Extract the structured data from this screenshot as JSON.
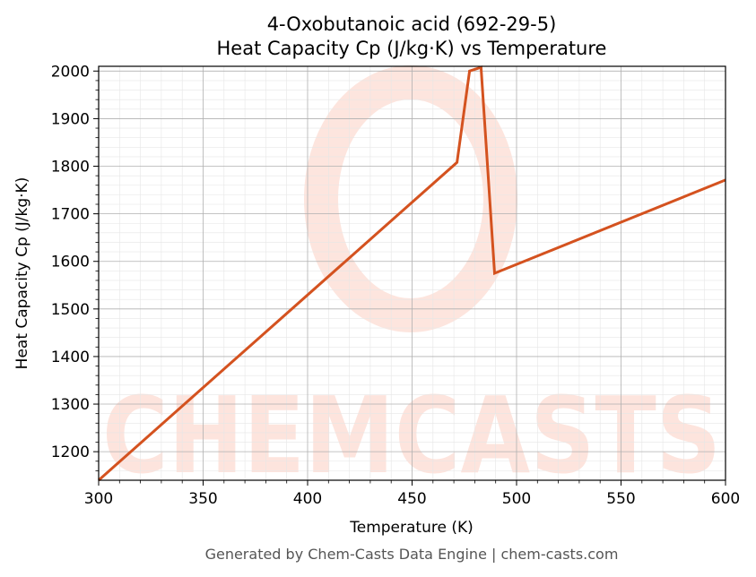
{
  "chart_data": {
    "type": "line",
    "title_line1": "4-Oxobutanoic acid (692-29-5)",
    "title_line2": "Heat Capacity Cp (J/kg·K) vs Temperature",
    "xlabel": "Temperature (K)",
    "ylabel": "Heat Capacity Cp (J/kg·K)",
    "xlim": [
      300,
      600
    ],
    "ylim": [
      1140,
      2010
    ],
    "xticks": [
      300,
      350,
      400,
      450,
      500,
      550,
      600
    ],
    "yticks": [
      1200,
      1300,
      1400,
      1500,
      1600,
      1700,
      1800,
      1900,
      2000
    ],
    "grid": true,
    "series": [
      {
        "color": "#d4521f",
        "x": [
          300,
          471.5,
          477.5,
          483,
          489.5,
          600
        ],
        "y": [
          1140,
          1808,
          2000,
          2008,
          1575,
          1771
        ]
      }
    ]
  },
  "watermark": {
    "text": "CHEMCASTS",
    "color": "#fde0d8"
  },
  "footer": {
    "text": "Generated by Chem-Casts Data Engine | chem-casts.com"
  }
}
